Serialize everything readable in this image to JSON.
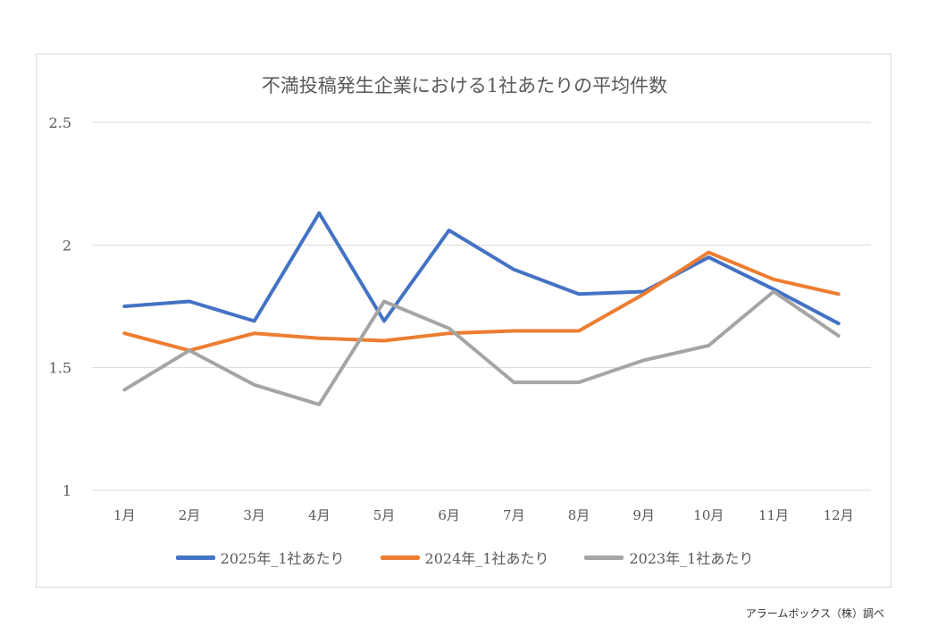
{
  "chart_data": {
    "type": "line",
    "title": "不満投稿発生企業における1社あたりの平均件数",
    "categories": [
      "1月",
      "2月",
      "3月",
      "4月",
      "5月",
      "6月",
      "7月",
      "8月",
      "9月",
      "10月",
      "11月",
      "12月"
    ],
    "ylim": [
      1,
      2.5
    ],
    "yticks": [
      "1",
      "1.5",
      "2",
      "2.5"
    ],
    "grid": true,
    "legend_position": "bottom",
    "series": [
      {
        "name": "2025年_1社あたり",
        "color": "#4472C4",
        "values": [
          1.75,
          1.77,
          1.69,
          2.13,
          1.69,
          2.06,
          1.9,
          1.8,
          1.81,
          1.95,
          1.82,
          1.68
        ]
      },
      {
        "name": "2024年_1社あたり",
        "color": "#ED7D31",
        "values": [
          1.64,
          1.57,
          1.64,
          1.62,
          1.61,
          1.64,
          1.65,
          1.65,
          1.8,
          1.97,
          1.86,
          1.8
        ]
      },
      {
        "name": "2023年_1社あたり",
        "color": "#A5A5A5",
        "values": [
          1.41,
          1.57,
          1.43,
          1.35,
          1.77,
          1.66,
          1.44,
          1.44,
          1.53,
          1.59,
          1.81,
          1.63
        ]
      }
    ]
  },
  "source_note": "アラームボックス（株）調べ"
}
